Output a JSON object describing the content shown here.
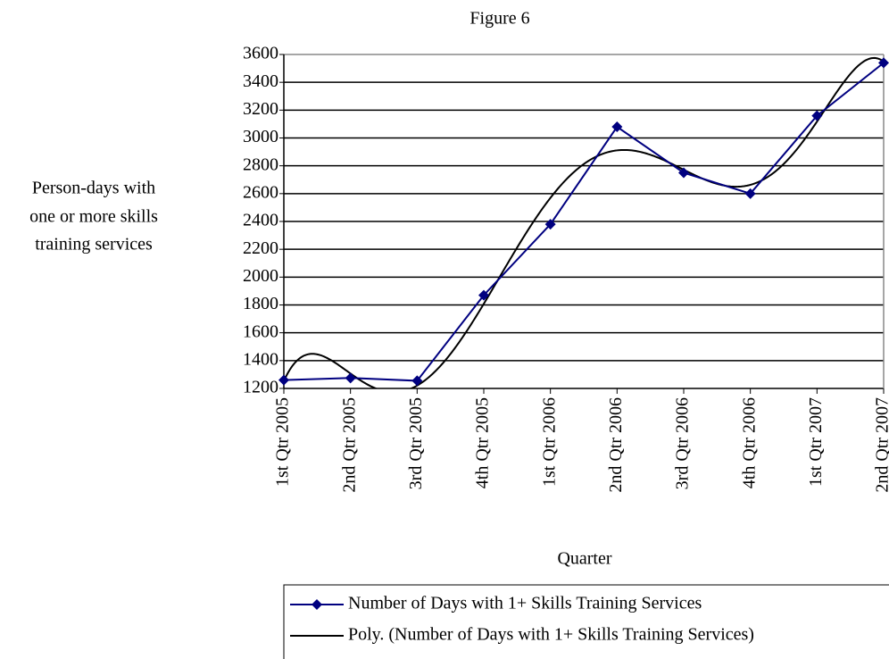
{
  "chart_data": {
    "type": "line",
    "title": "Figure 6",
    "xlabel": "Quarter",
    "ylabel": [
      "Person-days with",
      "one or more skills",
      "training services"
    ],
    "categories": [
      "1st Qtr 2005",
      "2nd Qtr 2005",
      "3rd Qtr 2005",
      "4th Qtr 2005",
      "1st Qtr 2006",
      "2nd Qtr 2006",
      "3rd Qtr 2006",
      "4th Qtr 2006",
      "1st Qtr 2007",
      "2nd Qtr 2007"
    ],
    "series": [
      {
        "name": "Number of Days with 1+ Skills Training Services",
        "color": "#000080",
        "values": [
          1260,
          1275,
          1255,
          1870,
          2380,
          3080,
          2750,
          2600,
          3160,
          3540
        ]
      }
    ],
    "trendline": {
      "name": "Poly. (Number of Days with 1+ Skills Training Services)",
      "type": "polynomial",
      "order": 6,
      "color": "#000000"
    },
    "ylim": [
      1200,
      3600
    ],
    "yticks": [
      1200,
      1400,
      1600,
      1800,
      2000,
      2200,
      2400,
      2600,
      2800,
      3000,
      3200,
      3400,
      3600
    ],
    "grid": true,
    "legend": "bottom"
  }
}
